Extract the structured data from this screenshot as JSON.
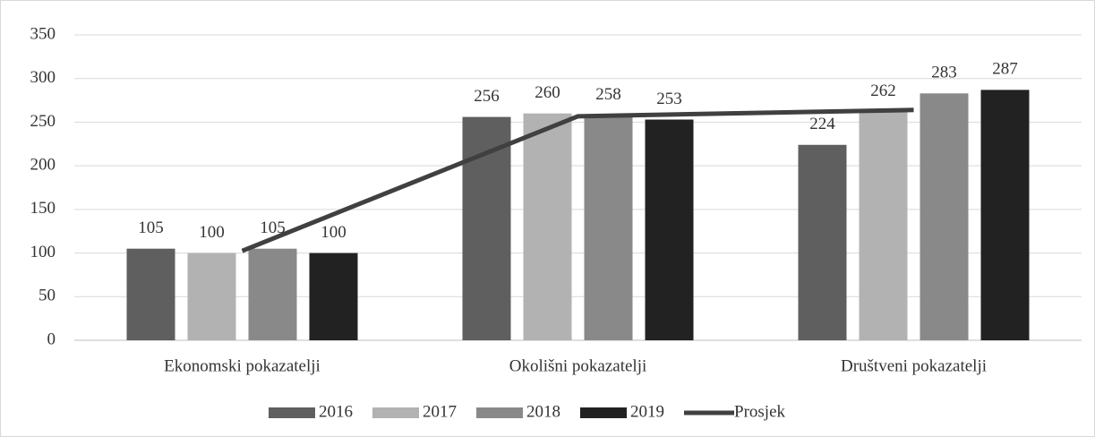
{
  "chart_data": {
    "type": "bar",
    "categories": [
      "Ekonomski pokazatelji",
      "Okolišni pokazatelji",
      "Društveni pokazatelji"
    ],
    "series": [
      {
        "name": "2016",
        "color": "#5f5f5f",
        "values": [
          105,
          256,
          224
        ]
      },
      {
        "name": "2017",
        "color": "#b2b2b2",
        "values": [
          100,
          260,
          262
        ]
      },
      {
        "name": "2018",
        "color": "#898989",
        "values": [
          105,
          258,
          283
        ]
      },
      {
        "name": "2019",
        "color": "#222222",
        "values": [
          100,
          253,
          287
        ]
      },
      {
        "name": "Prosjek",
        "type": "line",
        "color": "#404040",
        "values": [
          102.5,
          256.75,
          264
        ]
      }
    ],
    "ylim": [
      0,
      350
    ],
    "yticks": [
      0,
      50,
      100,
      150,
      200,
      250,
      300,
      350
    ],
    "grid": true,
    "legend": "bottom"
  }
}
